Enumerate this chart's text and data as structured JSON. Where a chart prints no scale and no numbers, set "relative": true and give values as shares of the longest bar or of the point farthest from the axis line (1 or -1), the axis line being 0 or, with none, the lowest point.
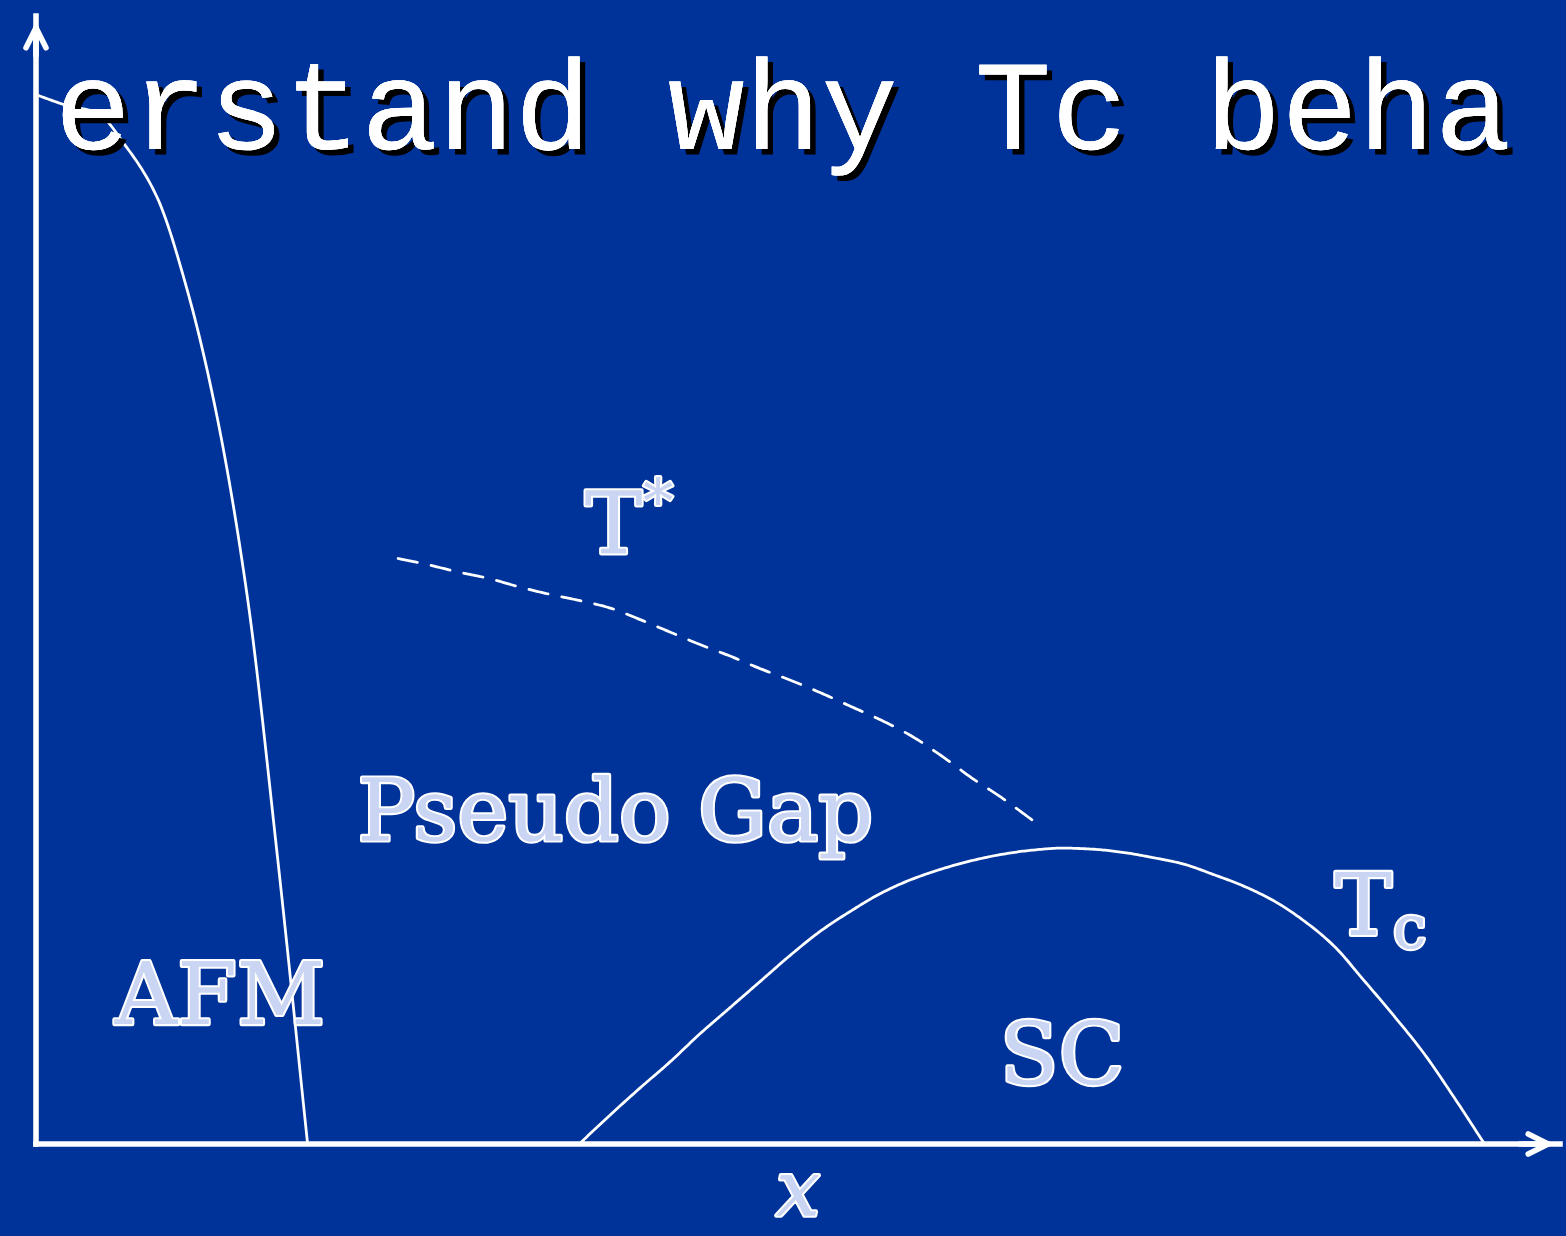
{
  "chart_data": {
    "type": "line",
    "title": "erstand why Tc beha",
    "xlabel": "x",
    "relative": true,
    "categories": [
      null,
      null,
      null,
      null,
      null,
      null,
      null,
      null,
      null,
      null,
      null,
      null,
      null,
      null,
      null,
      null,
      null,
      null,
      null,
      null,
      null,
      null,
      null,
      null,
      null,
      null,
      null,
      null,
      null,
      null,
      null,
      null,
      null,
      null,
      null,
      null,
      null,
      null,
      null,
      null,
      null,
      null,
      null,
      null,
      null,
      null,
      null,
      null,
      null,
      null,
      null
    ],
    "series": [
      {
        "color": "#ffffff",
        "line_style": "solid",
        "values": [
          1.0,
          0.99,
          0.983,
          0.95,
          0.903,
          0.815,
          0.693,
          0.522,
          0.274,
          0,
          null,
          null,
          null,
          null,
          null,
          null,
          null,
          null,
          null,
          null,
          null,
          null,
          null,
          null,
          null,
          null,
          null,
          null,
          null,
          null,
          null,
          null,
          null,
          null,
          null,
          null,
          null,
          null,
          null,
          null,
          null,
          null,
          null,
          null,
          null,
          null,
          null,
          null,
          null,
          null,
          null
        ]
      },
      {
        "name": "T$^{*}$",
        "color": "#ffffff",
        "line_style": "dashed",
        "values": [
          null,
          null,
          null,
          null,
          null,
          null,
          null,
          null,
          null,
          null,
          null,
          null,
          0.558,
          0.552,
          0.545,
          0.539,
          0.531,
          0.524,
          0.518,
          0.511,
          0.5,
          0.488,
          0.476,
          0.465,
          0.453,
          0.442,
          0.43,
          0.417,
          0.404,
          0.389,
          0.37,
          0.349,
          0.33,
          0.309,
          null,
          null,
          null,
          null,
          null,
          null,
          null,
          null,
          null,
          null,
          null,
          null,
          null,
          null,
          null,
          null,
          null
        ]
      },
      {
        "name": "T$_{c}$",
        "color": "#ffffff",
        "line_style": "solid",
        "values": [
          null,
          null,
          null,
          null,
          null,
          null,
          null,
          null,
          null,
          null,
          null,
          null,
          null,
          null,
          null,
          null,
          null,
          null,
          0,
          0.027,
          0.053,
          0.078,
          0.105,
          0.13,
          0.155,
          0.18,
          0.203,
          0.222,
          0.239,
          0.252,
          0.262,
          0.27,
          0.276,
          0.28,
          0.282,
          0.281,
          0.278,
          0.273,
          0.267,
          0.257,
          0.246,
          0.232,
          0.213,
          0.189,
          0.156,
          0.122,
          0.086,
          0.044,
          0,
          null,
          null
        ]
      }
    ],
    "annotations": [
      "Pseudo Gap",
      "AFM",
      "SC"
    ]
  }
}
